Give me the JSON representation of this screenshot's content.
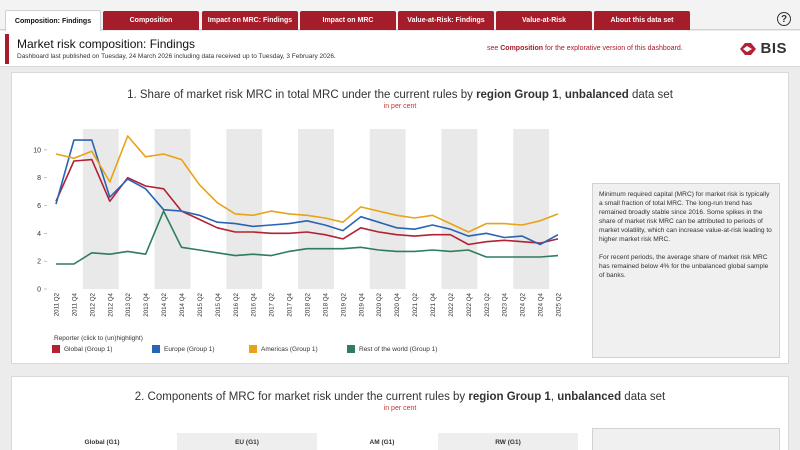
{
  "tabs": [
    {
      "label": "Composition: Findings",
      "active": true
    },
    {
      "label": "Composition",
      "active": false
    },
    {
      "label": "Impact on MRC: Findings",
      "active": false
    },
    {
      "label": "Impact on MRC",
      "active": false
    },
    {
      "label": "Value-at-Risk: Findings",
      "active": false
    },
    {
      "label": "Value-at-Risk",
      "active": false
    },
    {
      "label": "About this data set",
      "active": false
    }
  ],
  "help_glyph": "?",
  "header": {
    "title": "Market risk composition: Findings",
    "subtitle": "Dashboard last published on Tuesday, 24 March 2026 including data received up to Tuesday, 3 February 2026.",
    "see_prefix": "see ",
    "see_link": "Composition",
    "see_suffix": " for the explorative version of this dashboard.",
    "logo_text": "BIS"
  },
  "chart1": {
    "title_prefix": "1. Share of market risk MRC in total MRC under the current rules by ",
    "title_bold1": "region Group 1",
    "title_mid": ", ",
    "title_bold2": "unbalanced",
    "title_suffix": " data set",
    "unit": "in per cent",
    "legend_title": "Reporter (click to (un)highlight)",
    "commentary": [
      "Minimum required capital (MRC) for market risk is typically a small fraction of total MRC. The long-run trend has remained broadly stable since 2016. Some spikes in the share of market risk MRC can be attributed to periods of market volatility, which can increase value-at-risk leading to higher market risk MRC.",
      "For recent periods, the average share of market risk MRC has remained below 4% for the unbalanced global sample of banks."
    ]
  },
  "chart_data": {
    "type": "line",
    "x": [
      "2011 Q2",
      "2011 Q4",
      "2012 Q2",
      "2012 Q4",
      "2013 Q2",
      "2013 Q4",
      "2014 Q2",
      "2014 Q4",
      "2015 Q2",
      "2015 Q4",
      "2016 Q2",
      "2016 Q4",
      "2017 Q2",
      "2017 Q4",
      "2018 Q2",
      "2018 Q4",
      "2019 Q2",
      "2019 Q4",
      "2020 Q2",
      "2020 Q4",
      "2021 Q2",
      "2021 Q4",
      "2022 Q2",
      "2022 Q4",
      "2023 Q2",
      "2023 Q4",
      "2024 Q2",
      "2024 Q4",
      "2025 Q2"
    ],
    "ylim": [
      0,
      11.5
    ],
    "yticks": [
      0,
      2,
      4,
      6,
      8,
      10
    ],
    "shaded_bands": "alternating years",
    "series": [
      {
        "name": "Global (Group 1)",
        "color": "#b22234",
        "values": [
          6.3,
          9.2,
          9.3,
          6.3,
          8.0,
          7.4,
          7.2,
          5.6,
          5.0,
          4.4,
          4.1,
          4.1,
          4.0,
          4.0,
          4.1,
          3.9,
          3.6,
          4.4,
          4.1,
          3.9,
          3.8,
          3.9,
          3.9,
          3.2,
          3.4,
          3.5,
          3.4,
          3.3,
          3.6
        ]
      },
      {
        "name": "Europe (Group 1)",
        "color": "#2a64b4",
        "values": [
          6.1,
          10.7,
          10.7,
          6.6,
          7.9,
          7.2,
          5.7,
          5.6,
          5.3,
          4.8,
          4.7,
          4.5,
          4.6,
          4.7,
          4.9,
          4.6,
          4.2,
          5.2,
          4.8,
          4.4,
          4.3,
          4.6,
          4.3,
          3.8,
          4.0,
          3.7,
          3.8,
          3.2,
          3.9
        ]
      },
      {
        "name": "Americas (Group 1)",
        "color": "#e8a317",
        "values": [
          9.7,
          9.4,
          9.9,
          7.7,
          11.0,
          9.5,
          9.7,
          9.3,
          7.5,
          6.2,
          5.4,
          5.3,
          5.6,
          5.4,
          5.3,
          5.1,
          4.8,
          5.9,
          5.6,
          5.3,
          5.1,
          5.3,
          4.7,
          4.1,
          4.7,
          4.7,
          4.6,
          4.9,
          5.4
        ]
      },
      {
        "name": "Rest of the world (Group 1)",
        "color": "#2e7d5b",
        "values": [
          1.8,
          1.8,
          2.6,
          2.5,
          2.7,
          2.5,
          5.6,
          3.0,
          2.8,
          2.6,
          2.4,
          2.5,
          2.4,
          2.7,
          2.9,
          2.9,
          2.9,
          3.0,
          2.8,
          2.7,
          2.7,
          2.8,
          2.7,
          2.8,
          2.3,
          2.3,
          2.3,
          2.3,
          2.4
        ]
      }
    ]
  },
  "chart2": {
    "title_prefix": "2. Components of MRC for market risk under the current rules by ",
    "title_bold1": "region Group 1",
    "title_mid": ", ",
    "title_bold2": "unbalanced",
    "title_suffix": " data set",
    "unit": "in per cent",
    "column_headers": [
      "Global (G1)",
      "EU (G1)",
      "AM (G1)",
      "RW (G1)"
    ]
  }
}
